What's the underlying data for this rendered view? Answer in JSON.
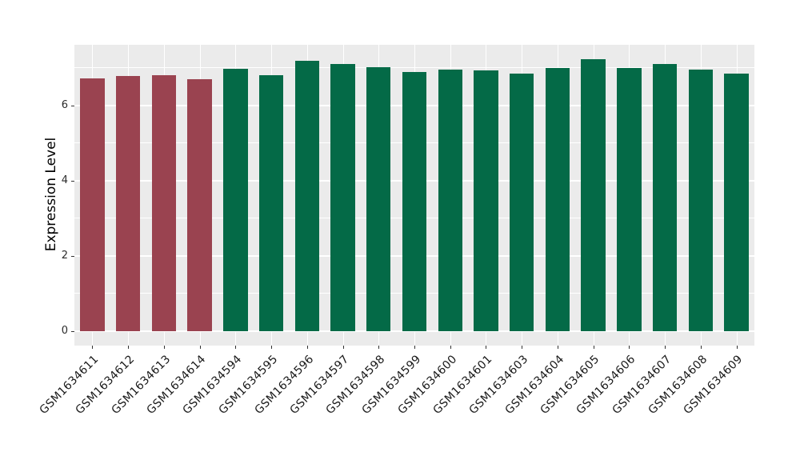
{
  "figure": {
    "title": "",
    "y_axis_title": "Expression Level"
  },
  "chart_data": {
    "type": "bar",
    "title": "",
    "xlabel": "",
    "ylabel": "Expression Level",
    "ylim": [
      0,
      7.62
    ],
    "yticks": [
      0,
      2,
      4,
      6
    ],
    "minor_gridlines": [
      1,
      3,
      5,
      7
    ],
    "grid": "on",
    "legend_position": "none",
    "panel_bg": "#EBEBEB",
    "grid_color": "#FFFFFF",
    "categories": [
      "GSM1634611",
      "GSM1634612",
      "GSM1634613",
      "GSM1634614",
      "GSM1634594",
      "GSM1634595",
      "GSM1634596",
      "GSM1634597",
      "GSM1634598",
      "GSM1634599",
      "GSM1634600",
      "GSM1634601",
      "GSM1634603",
      "GSM1634604",
      "GSM1634605",
      "GSM1634606",
      "GSM1634607",
      "GSM1634608",
      "GSM1634609"
    ],
    "values": [
      6.72,
      6.79,
      6.8,
      6.71,
      6.98,
      6.8,
      7.2,
      7.1,
      7.03,
      6.89,
      6.95,
      6.94,
      6.85,
      7.0,
      7.23,
      7.0,
      7.11,
      6.96,
      6.85
    ],
    "bar_groups": [
      "group-red",
      "group-red",
      "group-red",
      "group-red",
      "group-green",
      "group-green",
      "group-green",
      "group-green",
      "group-green",
      "group-green",
      "group-green",
      "group-green",
      "group-green",
      "group-green",
      "group-green",
      "group-green",
      "group-green",
      "group-green",
      "group-green"
    ],
    "group_colors": {
      "group-red": "#9A4350",
      "group-green": "#046A47"
    }
  }
}
